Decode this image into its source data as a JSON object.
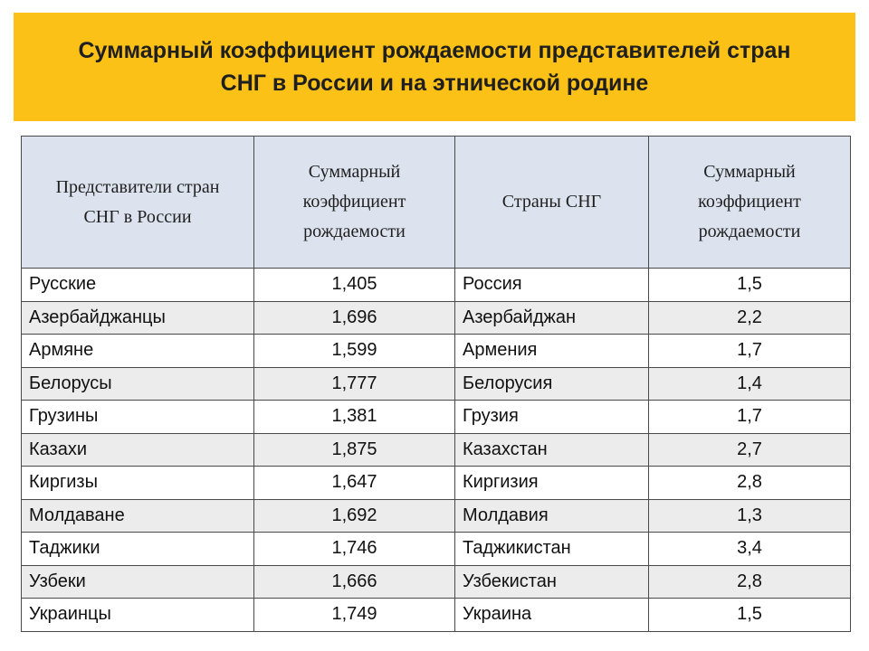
{
  "title": {
    "line1": "Суммарный коэффициент рождаемости представителей стран",
    "line2": "СНГ в России и на этнической родине"
  },
  "table": {
    "headers": [
      "Представители стран\nСНГ в России",
      "Суммарный\nкоэффициент\nрождаемости",
      "Страны СНГ",
      "Суммарный\nкоэффициент\nрождаемости"
    ],
    "rows": [
      {
        "group": "Русские",
        "tfr_russia": "1,405",
        "country": "Россия",
        "tfr_country": "1,5"
      },
      {
        "group": "Азербайджанцы",
        "tfr_russia": "1,696",
        "country": "Азербайджан",
        "tfr_country": "2,2"
      },
      {
        "group": "Армяне",
        "tfr_russia": "1,599",
        "country": "Армения",
        "tfr_country": "1,7"
      },
      {
        "group": "Белорусы",
        "tfr_russia": "1,777",
        "country": "Белорусия",
        "tfr_country": "1,4"
      },
      {
        "group": "Грузины",
        "tfr_russia": "1,381",
        "country": "Грузия",
        "tfr_country": "1,7"
      },
      {
        "group": "Казахи",
        "tfr_russia": "1,875",
        "country": "Казахстан",
        "tfr_country": "2,7"
      },
      {
        "group": "Киргизы",
        "tfr_russia": "1,647",
        "country": "Киргизия",
        "tfr_country": "2,8"
      },
      {
        "group": "Молдаване",
        "tfr_russia": "1,692",
        "country": "Молдавия",
        "tfr_country": "1,3"
      },
      {
        "group": "Таджики",
        "tfr_russia": "1,746",
        "country": "Таджикистан",
        "tfr_country": "3,4"
      },
      {
        "group": "Узбеки",
        "tfr_russia": "1,666",
        "country": "Узбекистан",
        "tfr_country": "2,8"
      },
      {
        "group": "Украинцы",
        "tfr_russia": "1,749",
        "country": "Украина",
        "tfr_country": "1,5"
      }
    ]
  },
  "colors": {
    "banner": "#fbc117",
    "header_bg": "#dde3ee",
    "row_alt": "#ececec",
    "border": "#4a4a4a"
  }
}
